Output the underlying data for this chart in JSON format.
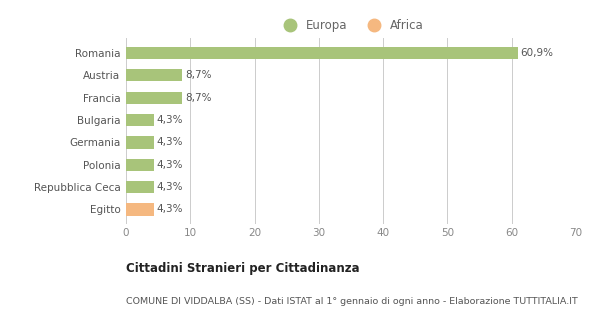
{
  "categories": [
    "Egitto",
    "Repubblica Ceca",
    "Polonia",
    "Germania",
    "Bulgaria",
    "Francia",
    "Austria",
    "Romania"
  ],
  "values": [
    4.3,
    4.3,
    4.3,
    4.3,
    4.3,
    8.7,
    8.7,
    60.9
  ],
  "labels": [
    "4,3%",
    "4,3%",
    "4,3%",
    "4,3%",
    "4,3%",
    "8,7%",
    "8,7%",
    "60,9%"
  ],
  "colors": [
    "#f5b880",
    "#a8c47a",
    "#a8c47a",
    "#a8c47a",
    "#a8c47a",
    "#a8c47a",
    "#a8c47a",
    "#a8c47a"
  ],
  "europa_color": "#a8c47a",
  "africa_color": "#f5b880",
  "xlim": [
    0,
    70
  ],
  "xticks": [
    0,
    10,
    20,
    30,
    40,
    50,
    60,
    70
  ],
  "title": "Cittadini Stranieri per Cittadinanza",
  "subtitle": "COMUNE DI VIDDALBA (SS) - Dati ISTAT al 1° gennaio di ogni anno - Elaborazione TUTTITALIA.IT",
  "bg_color": "#ffffff",
  "legend_europa": "Europa",
  "legend_africa": "Africa"
}
